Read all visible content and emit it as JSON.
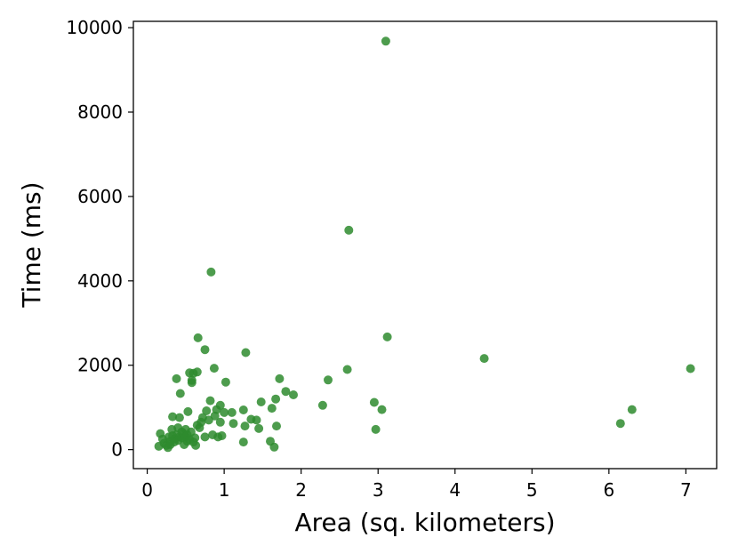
{
  "chart_data": {
    "type": "scatter",
    "title": "",
    "xlabel": "Area (sq. kilometers)",
    "ylabel": "Time (ms)",
    "xlim": [
      -0.18,
      7.4
    ],
    "ylim": [
      -450,
      10150
    ],
    "xticks": [
      0,
      1,
      2,
      3,
      4,
      5,
      6,
      7
    ],
    "yticks": [
      0,
      2000,
      4000,
      6000,
      8000,
      10000
    ],
    "grid": false,
    "legend": "none",
    "point_color": "#2e8b2e",
    "series": [
      {
        "points": [
          [
            0.15,
            80
          ],
          [
            0.17,
            380
          ],
          [
            0.2,
            250
          ],
          [
            0.22,
            150
          ],
          [
            0.25,
            100
          ],
          [
            0.27,
            50
          ],
          [
            0.28,
            300
          ],
          [
            0.3,
            200
          ],
          [
            0.3,
            120
          ],
          [
            0.32,
            480
          ],
          [
            0.33,
            330
          ],
          [
            0.33,
            780
          ],
          [
            0.35,
            180
          ],
          [
            0.36,
            260
          ],
          [
            0.38,
            1680
          ],
          [
            0.38,
            350
          ],
          [
            0.4,
            220
          ],
          [
            0.4,
            520
          ],
          [
            0.42,
            760
          ],
          [
            0.42,
            300
          ],
          [
            0.43,
            1330
          ],
          [
            0.45,
            280
          ],
          [
            0.45,
            420
          ],
          [
            0.47,
            380
          ],
          [
            0.48,
            120
          ],
          [
            0.5,
            300
          ],
          [
            0.5,
            480
          ],
          [
            0.52,
            200
          ],
          [
            0.52,
            350
          ],
          [
            0.53,
            900
          ],
          [
            0.55,
            240
          ],
          [
            0.55,
            1820
          ],
          [
            0.57,
            420
          ],
          [
            0.58,
            1640
          ],
          [
            0.58,
            1590
          ],
          [
            0.6,
            1810
          ],
          [
            0.6,
            180
          ],
          [
            0.62,
            280
          ],
          [
            0.63,
            100
          ],
          [
            0.65,
            580
          ],
          [
            0.65,
            1840
          ],
          [
            0.66,
            2650
          ],
          [
            0.68,
            520
          ],
          [
            0.7,
            650
          ],
          [
            0.72,
            760
          ],
          [
            0.75,
            2370
          ],
          [
            0.75,
            300
          ],
          [
            0.77,
            920
          ],
          [
            0.8,
            700
          ],
          [
            0.82,
            1160
          ],
          [
            0.83,
            4210
          ],
          [
            0.85,
            350
          ],
          [
            0.87,
            1930
          ],
          [
            0.88,
            800
          ],
          [
            0.9,
            950
          ],
          [
            0.92,
            300
          ],
          [
            0.95,
            650
          ],
          [
            0.95,
            1050
          ],
          [
            0.97,
            330
          ],
          [
            1.0,
            880
          ],
          [
            1.02,
            1600
          ],
          [
            1.1,
            880
          ],
          [
            1.12,
            620
          ],
          [
            1.25,
            180
          ],
          [
            1.25,
            940
          ],
          [
            1.27,
            560
          ],
          [
            1.28,
            2300
          ],
          [
            1.35,
            720
          ],
          [
            1.42,
            700
          ],
          [
            1.45,
            500
          ],
          [
            1.48,
            1130
          ],
          [
            1.6,
            200
          ],
          [
            1.62,
            980
          ],
          [
            1.65,
            60
          ],
          [
            1.67,
            1200
          ],
          [
            1.68,
            560
          ],
          [
            1.72,
            1680
          ],
          [
            1.8,
            1380
          ],
          [
            1.9,
            1300
          ],
          [
            2.28,
            1050
          ],
          [
            2.35,
            1650
          ],
          [
            2.6,
            1900
          ],
          [
            2.62,
            5200
          ],
          [
            2.95,
            1120
          ],
          [
            2.97,
            480
          ],
          [
            3.05,
            950
          ],
          [
            3.1,
            9680
          ],
          [
            3.12,
            2670
          ],
          [
            4.38,
            2160
          ],
          [
            6.15,
            620
          ],
          [
            6.3,
            950
          ],
          [
            7.06,
            1920
          ]
        ]
      }
    ]
  }
}
